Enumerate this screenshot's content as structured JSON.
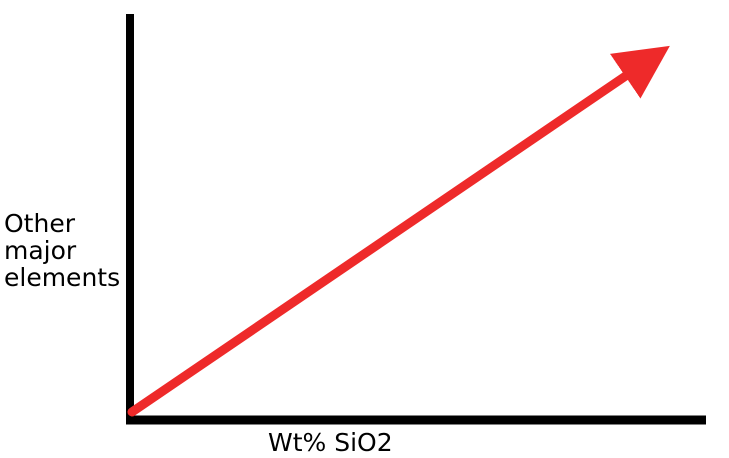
{
  "labels": {
    "y_axis_lines": [
      "Other",
      "major",
      "elements"
    ],
    "x_axis": "Wt% SiO2"
  },
  "colors": {
    "axis": "#000000",
    "trend_arrow": "#ee2a2a"
  },
  "icons": {
    "trend": "arrow-up-right-icon"
  }
}
